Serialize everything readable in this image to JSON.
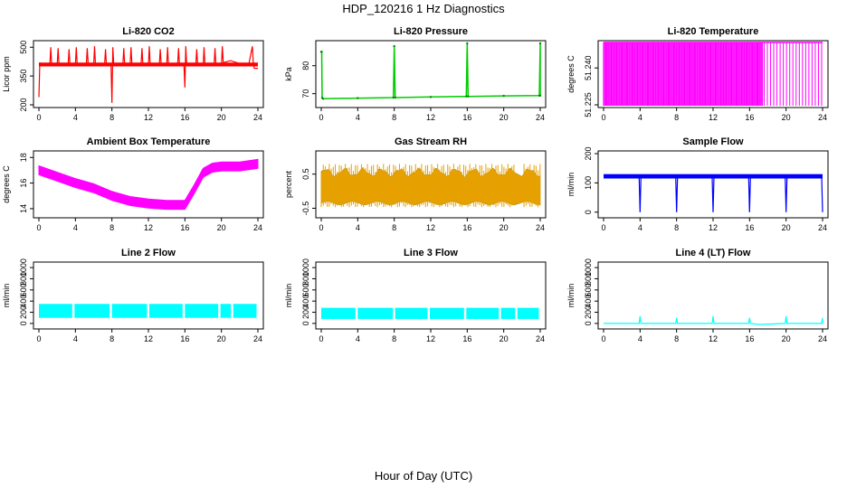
{
  "title": "HDP_120216  1 Hz Diagnostics",
  "xlabel": "Hour of Day (UTC)",
  "chart_data": [
    {
      "type": "line",
      "title": "Li-820 CO2",
      "ylabel": "Licor ppm",
      "color": "#ff0000",
      "xlim": [
        0,
        24
      ],
      "ylim": [
        200,
        520
      ],
      "xticks": [
        "0",
        "4",
        "8",
        "12",
        "16",
        "20",
        "24"
      ],
      "yticks": [
        {
          "value": 200,
          "label": "200"
        },
        {
          "value": 350,
          "label": "350"
        },
        {
          "value": 500,
          "label": "500"
        }
      ],
      "series": [
        {
          "x": [
            0,
            0.1,
            0.2,
            0.3,
            0.4,
            1.2,
            1.3,
            1.4,
            2,
            2.1,
            2.2,
            3.2,
            3.3,
            3.4,
            4,
            4.1,
            4.2,
            5.2,
            5.3,
            5.4,
            6,
            6.1,
            6.2,
            7.2,
            7.3,
            7.4,
            7.9,
            8.0,
            8.1,
            8.2,
            9.2,
            9.3,
            9.4,
            10,
            10.1,
            10.2,
            11.2,
            11.3,
            11.4,
            12,
            12.1,
            12.2,
            13.2,
            13.3,
            13.4,
            14,
            14.1,
            14.2,
            15.2,
            15.3,
            15.4,
            15.9,
            16.0,
            16.1,
            16.2,
            17.2,
            17.3,
            17.4,
            18,
            18.1,
            18.2,
            19.2,
            19.3,
            19.4,
            20,
            20.1,
            20.2,
            21,
            22,
            23,
            23.4,
            23.5,
            23.6,
            24
          ],
          "y": [
            240,
            420,
            410,
            410,
            410,
            410,
            500,
            410,
            410,
            495,
            410,
            410,
            490,
            410,
            405,
            500,
            410,
            410,
            495,
            410,
            405,
            505,
            410,
            410,
            490,
            410,
            405,
            210,
            500,
            410,
            410,
            495,
            410,
            405,
            500,
            410,
            410,
            495,
            410,
            405,
            505,
            410,
            410,
            490,
            410,
            405,
            500,
            410,
            410,
            495,
            410,
            405,
            290,
            505,
            410,
            410,
            490,
            410,
            405,
            500,
            410,
            410,
            495,
            410,
            405,
            505,
            420,
            430,
            415,
            410,
            505,
            410,
            390,
            390
          ]
        }
      ]
    },
    {
      "type": "line",
      "title": "Li-820 Pressure",
      "ylabel": "kPa",
      "color": "#00cc00",
      "xlim": [
        0,
        24
      ],
      "ylim": [
        66,
        88
      ],
      "xticks": [
        "0",
        "4",
        "8",
        "12",
        "16",
        "20",
        "24"
      ],
      "yticks": [
        {
          "value": 70,
          "label": "70"
        },
        {
          "value": 80,
          "label": "80"
        }
      ],
      "series": [
        {
          "x": [
            0,
            0.05,
            0.1,
            0.2,
            4,
            7.9,
            8.0,
            8.1,
            12,
            15.9,
            16.0,
            16.1,
            20,
            23.9,
            24.0,
            24
          ],
          "y": [
            85,
            85,
            68.5,
            68.2,
            68.4,
            68.6,
            87,
            68.6,
            68.8,
            69,
            88,
            69,
            69.2,
            69.3,
            88,
            69.3
          ]
        }
      ]
    },
    {
      "type": "line",
      "title": "Li-820 Temperature",
      "ylabel": "degrees C",
      "color": "#ff00ff",
      "xlim": [
        0,
        24
      ],
      "ylim": [
        51.225,
        51.25
      ],
      "xticks": [
        "0",
        "4",
        "8",
        "12",
        "16",
        "20",
        "24"
      ],
      "yticks": [
        {
          "value": 51.225,
          "label": "51.225"
        },
        {
          "value": 51.24,
          "label": "51.240"
        }
      ],
      "series": [
        {
          "x": [
            0,
            17.5
          ],
          "y": [
            51.225,
            51.25
          ]
        }
      ]
    },
    {
      "type": "line",
      "title": "Ambient Box Temperature",
      "ylabel": "degrees C",
      "color": "#ff00ff",
      "xlim": [
        0,
        24
      ],
      "ylim": [
        13.5,
        18.3
      ],
      "xticks": [
        "0",
        "4",
        "8",
        "12",
        "16",
        "20",
        "24"
      ],
      "yticks": [
        {
          "value": 14,
          "label": "14"
        },
        {
          "value": 16,
          "label": "16"
        },
        {
          "value": 18,
          "label": "18"
        }
      ],
      "series": [
        {
          "x": [
            0,
            2,
            4,
            6,
            8,
            10,
            12,
            14,
            16,
            17,
            18,
            19,
            20,
            21,
            22,
            24
          ],
          "y": [
            17.0,
            16.5,
            16.0,
            15.6,
            15.0,
            14.6,
            14.4,
            14.3,
            14.3,
            15.5,
            16.8,
            17.2,
            17.3,
            17.3,
            17.3,
            17.5
          ]
        }
      ]
    },
    {
      "type": "scatter",
      "title": "Gas Stream RH",
      "ylabel": "percent",
      "color": "#e6a000",
      "xlim": [
        0,
        24
      ],
      "ylim": [
        -0.7,
        1.1
      ],
      "xticks": [
        "0",
        "4",
        "8",
        "12",
        "16",
        "20",
        "24"
      ],
      "yticks": [
        {
          "value": -0.5,
          "label": "-0.5"
        },
        {
          "value": 0.5,
          "label": "0.5"
        }
      ],
      "series": [
        {
          "x": [
            0,
            21.5,
            22.5,
            24
          ],
          "y": [
            -0.3,
            0.7,
            -0.3,
            0.7
          ]
        }
      ]
    },
    {
      "type": "line",
      "title": "Sample Flow",
      "ylabel": "ml/min",
      "color": "#0000ff",
      "xlim": [
        0,
        24
      ],
      "ylim": [
        -10,
        200
      ],
      "xticks": [
        "0",
        "4",
        "8",
        "12",
        "16",
        "20",
        "24"
      ],
      "yticks": [
        {
          "value": 0,
          "label": "0"
        },
        {
          "value": 100,
          "label": "100"
        },
        {
          "value": 200,
          "label": "200"
        }
      ],
      "series": [
        {
          "x": [
            0,
            3.9,
            4.0,
            4.1,
            7.9,
            8.0,
            8.1,
            11.9,
            12.0,
            12.1,
            15.9,
            16.0,
            16.1,
            19.9,
            20.0,
            20.1,
            23.9,
            24.0
          ],
          "y": [
            125,
            120,
            0,
            120,
            120,
            0,
            120,
            120,
            0,
            120,
            120,
            0,
            120,
            120,
            0,
            120,
            120,
            0
          ]
        }
      ]
    },
    {
      "type": "line",
      "title": "Line 2 Flow",
      "ylabel": "ml/min",
      "color": "#00ffff",
      "xlim": [
        0,
        24
      ],
      "ylim": [
        -50,
        1050
      ],
      "xticks": [
        "0",
        "4",
        "8",
        "12",
        "16",
        "20",
        "24"
      ],
      "yticks": [
        {
          "value": 0,
          "label": "0"
        },
        {
          "value": 200,
          "label": "200"
        },
        {
          "value": 400,
          "label": "400"
        },
        {
          "value": 600,
          "label": "600"
        },
        {
          "value": 800,
          "label": "800"
        },
        {
          "value": 1000,
          "label": "1000"
        }
      ],
      "series": [
        {
          "x": [
            0,
            24
          ],
          "y": [
            100,
            350
          ]
        }
      ]
    },
    {
      "type": "line",
      "title": "Line 3 Flow",
      "ylabel": "ml/min",
      "color": "#00ffff",
      "xlim": [
        0,
        24
      ],
      "ylim": [
        -50,
        1050
      ],
      "xticks": [
        "0",
        "4",
        "8",
        "12",
        "16",
        "20",
        "24"
      ],
      "yticks": [
        {
          "value": 0,
          "label": "0"
        },
        {
          "value": 200,
          "label": "200"
        },
        {
          "value": 400,
          "label": "400"
        },
        {
          "value": 600,
          "label": "600"
        },
        {
          "value": 800,
          "label": "800"
        },
        {
          "value": 1000,
          "label": "1000"
        }
      ],
      "series": [
        {
          "x": [
            0,
            24
          ],
          "y": [
            80,
            280
          ]
        }
      ]
    },
    {
      "type": "line",
      "title": "Line 4 (LT) Flow",
      "ylabel": "ml/min",
      "color": "#00ffff",
      "xlim": [
        0,
        24
      ],
      "ylim": [
        -50,
        1050
      ],
      "xticks": [
        "0",
        "4",
        "8",
        "12",
        "16",
        "20",
        "24"
      ],
      "yticks": [
        {
          "value": 0,
          "label": "0"
        },
        {
          "value": 200,
          "label": "200"
        },
        {
          "value": 400,
          "label": "400"
        },
        {
          "value": 600,
          "label": "600"
        },
        {
          "value": 800,
          "label": "800"
        },
        {
          "value": 1000,
          "label": "1000"
        }
      ],
      "series": [
        {
          "x": [
            0,
            3.9,
            4.0,
            4.1,
            7.9,
            8.0,
            8.1,
            11.9,
            12.0,
            12.1,
            15.9,
            16.0,
            16.1,
            17,
            19.9,
            20.0,
            20.1,
            23.9,
            24.0,
            24.0
          ],
          "y": [
            0,
            0,
            130,
            0,
            0,
            100,
            0,
            0,
            130,
            0,
            0,
            100,
            0,
            -20,
            0,
            130,
            0,
            0,
            100,
            0
          ]
        }
      ]
    }
  ]
}
